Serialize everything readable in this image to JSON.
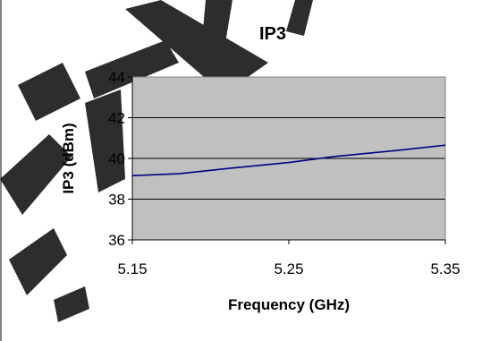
{
  "chart_data": {
    "type": "line",
    "title": "IP3",
    "xlabel": "Frequency (GHz)",
    "ylabel": "IP3 (dBm)",
    "xlim": [
      5.15,
      5.35
    ],
    "ylim": [
      36,
      44
    ],
    "xticks": [
      "5.15",
      "5.25",
      "5.35"
    ],
    "yticks": [
      "36",
      "38",
      "40",
      "42",
      "44"
    ],
    "grid": true,
    "legend": "none",
    "series": [
      {
        "color": "#000080",
        "x": [
          5.15,
          5.18,
          5.21,
          5.25,
          5.28,
          5.32,
          5.35
        ],
        "y": [
          39.15,
          39.25,
          39.5,
          39.8,
          40.1,
          40.4,
          40.65
        ]
      }
    ],
    "colors": {
      "plot_background": "#c0c0c0",
      "gridline": "#000000",
      "line": "#000080"
    }
  }
}
